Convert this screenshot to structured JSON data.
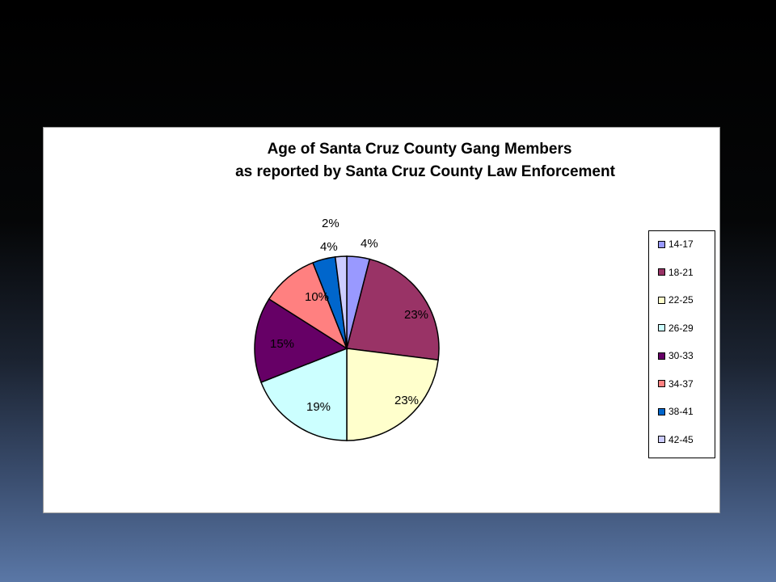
{
  "chart_data": {
    "type": "pie",
    "title": "Age of Santa Cruz County Gang Members",
    "subtitle": "as reported by Santa Cruz County Law Enforcement",
    "categories": [
      "14-17",
      "18-21",
      "22-25",
      "26-29",
      "30-33",
      "34-37",
      "38-41",
      "42-45"
    ],
    "values": [
      4,
      23,
      23,
      19,
      15,
      10,
      4,
      2
    ],
    "labels": [
      "4%",
      "23%",
      "23%",
      "19%",
      "15%",
      "10%",
      "4%",
      "2%"
    ],
    "colors": [
      "#9999ff",
      "#993366",
      "#ffffcc",
      "#ccffff",
      "#660066",
      "#ff8080",
      "#0066cc",
      "#ccccff"
    ],
    "legend_position": "right"
  }
}
